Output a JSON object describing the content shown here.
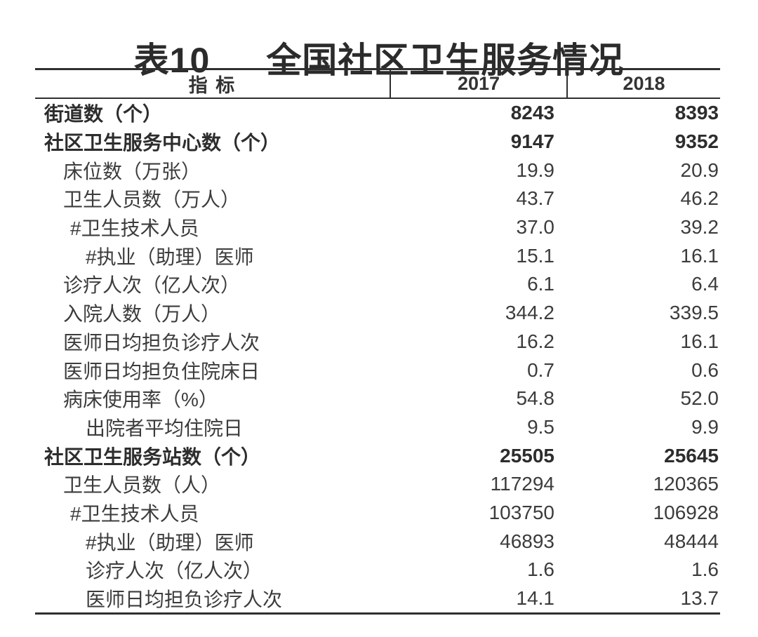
{
  "title": {
    "prefix": "表10",
    "text": "全国社区卫生服务情况"
  },
  "table": {
    "columns": {
      "indicator": "指 标",
      "y2017": "2017",
      "y2018": "2018"
    },
    "rows": [
      {
        "label": "街道数（个）",
        "v2017": "8243",
        "v2018": "8393"
      },
      {
        "label": "社区卫生服务中心数（个）",
        "v2017": "9147",
        "v2018": "9352"
      },
      {
        "label": "床位数（万张）",
        "v2017": "19.9",
        "v2018": "20.9"
      },
      {
        "label": "卫生人员数（万人）",
        "v2017": "43.7",
        "v2018": "46.2"
      },
      {
        "label": "#卫生技术人员",
        "v2017": "37.0",
        "v2018": "39.2"
      },
      {
        "label": "#执业（助理）医师",
        "v2017": "15.1",
        "v2018": "16.1"
      },
      {
        "label": "诊疗人次（亿人次）",
        "v2017": "6.1",
        "v2018": "6.4"
      },
      {
        "label": "入院人数（万人）",
        "v2017": "344.2",
        "v2018": "339.5"
      },
      {
        "label": "医师日均担负诊疗人次",
        "v2017": "16.2",
        "v2018": "16.1"
      },
      {
        "label": "医师日均担负住院床日",
        "v2017": "0.7",
        "v2018": "0.6"
      },
      {
        "label": "病床使用率（%）",
        "v2017": "54.8",
        "v2018": "52.0"
      },
      {
        "label": "出院者平均住院日",
        "v2017": "9.5",
        "v2018": "9.9"
      },
      {
        "label": "社区卫生服务站数（个）",
        "v2017": "25505",
        "v2018": "25645"
      },
      {
        "label": "卫生人员数（人）",
        "v2017": "117294",
        "v2018": "120365"
      },
      {
        "label": "#卫生技术人员",
        "v2017": "103750",
        "v2018": "106928"
      },
      {
        "label": "#执业（助理）医师",
        "v2017": "46893",
        "v2018": "48444"
      },
      {
        "label": "诊疗人次（亿人次）",
        "v2017": "1.6",
        "v2018": "1.6"
      },
      {
        "label": "医师日均担负诊疗人次",
        "v2017": "14.1",
        "v2018": "13.7"
      }
    ],
    "text_color": "#3c3c3c",
    "bold_color": "#2d2d2d",
    "rule_color": "#2f2f2f"
  }
}
